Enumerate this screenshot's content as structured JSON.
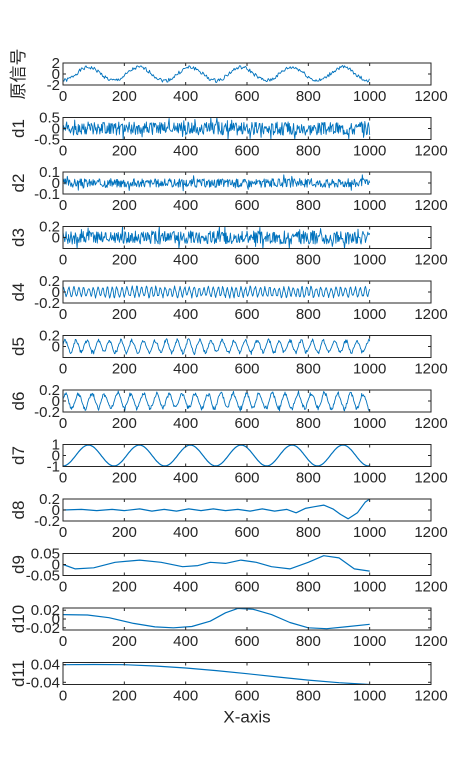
{
  "chart_data": [
    {
      "type": "line",
      "ylabel": "原信号",
      "xlim": [
        0,
        1200
      ],
      "ylim": [
        -2,
        2
      ],
      "yticks": [
        "2",
        "0",
        "-2"
      ],
      "x_range": [
        0,
        1000
      ],
      "shape": "sine",
      "period": 166,
      "amplitude": 1.2,
      "noise": 0.35,
      "seed": 1
    },
    {
      "type": "line",
      "ylabel": "d1",
      "xlim": [
        0,
        1200
      ],
      "ylim": [
        -0.5,
        0.5
      ],
      "yticks": [
        "0.5",
        "0",
        "-0.5"
      ],
      "x_range": [
        0,
        1000
      ],
      "shape": "noise",
      "amplitude": 0.3,
      "seed": 2
    },
    {
      "type": "line",
      "ylabel": "d2",
      "xlim": [
        0,
        1200
      ],
      "ylim": [
        -0.1,
        0.1
      ],
      "yticks": [
        "0.1",
        "0",
        "-0.1"
      ],
      "x_range": [
        0,
        1000
      ],
      "shape": "noise",
      "amplitude": 0.04,
      "seed": 3
    },
    {
      "type": "line",
      "ylabel": "d3",
      "xlim": [
        0,
        1200
      ],
      "ylim": [
        -0.2,
        0.2
      ],
      "yticks": [
        "0.2",
        "0"
      ],
      "x_range": [
        0,
        1000
      ],
      "shape": "noise",
      "amplitude": 0.12,
      "seed": 4
    },
    {
      "type": "line",
      "ylabel": "d4",
      "xlim": [
        0,
        1200
      ],
      "ylim": [
        -0.2,
        0.2
      ],
      "yticks": [
        "0.2",
        "0",
        "-0.2"
      ],
      "x_range": [
        0,
        1000
      ],
      "shape": "osc",
      "period": 16,
      "amplitude": 0.1,
      "seed": 5
    },
    {
      "type": "line",
      "ylabel": "d5",
      "xlim": [
        0,
        1200
      ],
      "ylim": [
        -0.2,
        0.2
      ],
      "yticks": [
        "0.2",
        "0"
      ],
      "x_range": [
        0,
        1000
      ],
      "shape": "osc",
      "period": 38,
      "amplitude": 0.13,
      "seed": 6
    },
    {
      "type": "line",
      "ylabel": "d6",
      "xlim": [
        0,
        1200
      ],
      "ylim": [
        -0.2,
        0.2
      ],
      "yticks": [
        "0.2",
        "0",
        "-0.2"
      ],
      "x_range": [
        0,
        1000
      ],
      "shape": "osc",
      "period": 44,
      "amplitude": 0.16,
      "seed": 7
    },
    {
      "type": "line",
      "ylabel": "d7",
      "xlim": [
        0,
        1200
      ],
      "ylim": [
        -1,
        1
      ],
      "yticks": [
        "1",
        "0",
        "-1"
      ],
      "x_range": [
        0,
        1000
      ],
      "shape": "sine",
      "period": 166,
      "amplitude": 0.95,
      "noise": 0,
      "seed": 8
    },
    {
      "type": "line",
      "ylabel": "d8",
      "xlim": [
        0,
        1200
      ],
      "ylim": [
        -0.2,
        0.2
      ],
      "yticks": [
        "0.2",
        "0",
        "-0.2"
      ],
      "x_range": [
        0,
        1000
      ],
      "shape": "points",
      "x": [
        0,
        60,
        110,
        160,
        200,
        250,
        290,
        330,
        370,
        410,
        450,
        490,
        530,
        570,
        610,
        650,
        690,
        730,
        760,
        790,
        820,
        850,
        880,
        905,
        930,
        960,
        985,
        1000
      ],
      "y": [
        0.0,
        0.01,
        -0.01,
        0.01,
        -0.01,
        0.02,
        -0.02,
        0.01,
        -0.02,
        0.02,
        -0.01,
        0.02,
        -0.01,
        0.01,
        -0.02,
        0.02,
        -0.02,
        0.01,
        -0.05,
        0.03,
        0.06,
        0.09,
        0.02,
        -0.08,
        -0.16,
        -0.05,
        0.14,
        0.2
      ]
    },
    {
      "type": "line",
      "ylabel": "d9",
      "xlim": [
        0,
        1200
      ],
      "ylim": [
        -0.05,
        0.05
      ],
      "yticks": [
        "0.05",
        "0",
        "-0.05"
      ],
      "x_range": [
        0,
        1000
      ],
      "shape": "points",
      "x": [
        0,
        40,
        100,
        170,
        250,
        320,
        390,
        440,
        480,
        530,
        580,
        630,
        680,
        740,
        800,
        850,
        900,
        950,
        1000
      ],
      "y": [
        0.0,
        -0.02,
        -0.015,
        0.01,
        0.02,
        0.01,
        -0.01,
        -0.005,
        0.01,
        0.005,
        0.02,
        0.01,
        -0.01,
        -0.02,
        0.01,
        0.04,
        0.03,
        -0.02,
        -0.03
      ]
    },
    {
      "type": "line",
      "ylabel": "d10",
      "xlim": [
        0,
        1200
      ],
      "ylim": [
        -0.025,
        0.025
      ],
      "yticks": [
        "0.02",
        "0",
        "-0.02"
      ],
      "x_range": [
        0,
        1000
      ],
      "shape": "points",
      "x": [
        0,
        80,
        150,
        230,
        300,
        360,
        420,
        480,
        530,
        570,
        620,
        680,
        740,
        800,
        860,
        920,
        1000
      ],
      "y": [
        0.01,
        0.009,
        0.003,
        -0.01,
        -0.018,
        -0.02,
        -0.017,
        -0.005,
        0.014,
        0.024,
        0.022,
        0.01,
        -0.008,
        -0.02,
        -0.022,
        -0.018,
        -0.012
      ]
    },
    {
      "type": "line",
      "ylabel": "d11",
      "xlim": [
        0,
        1200
      ],
      "ylim": [
        -0.05,
        0.05
      ],
      "yticks": [
        "0.04",
        "-0.04"
      ],
      "x_range": [
        0,
        1000
      ],
      "shape": "points",
      "xlabel": "X-axis",
      "x": [
        0,
        100,
        200,
        300,
        400,
        500,
        600,
        700,
        800,
        900,
        1000
      ],
      "y": [
        0.04,
        0.041,
        0.04,
        0.034,
        0.025,
        0.013,
        -0.001,
        -0.016,
        -0.03,
        -0.042,
        -0.05
      ]
    }
  ],
  "xticks": [
    "0",
    "200",
    "400",
    "600",
    "800",
    "1000",
    "1200"
  ],
  "line_color": "#0072BD",
  "axis_color": "#262626"
}
